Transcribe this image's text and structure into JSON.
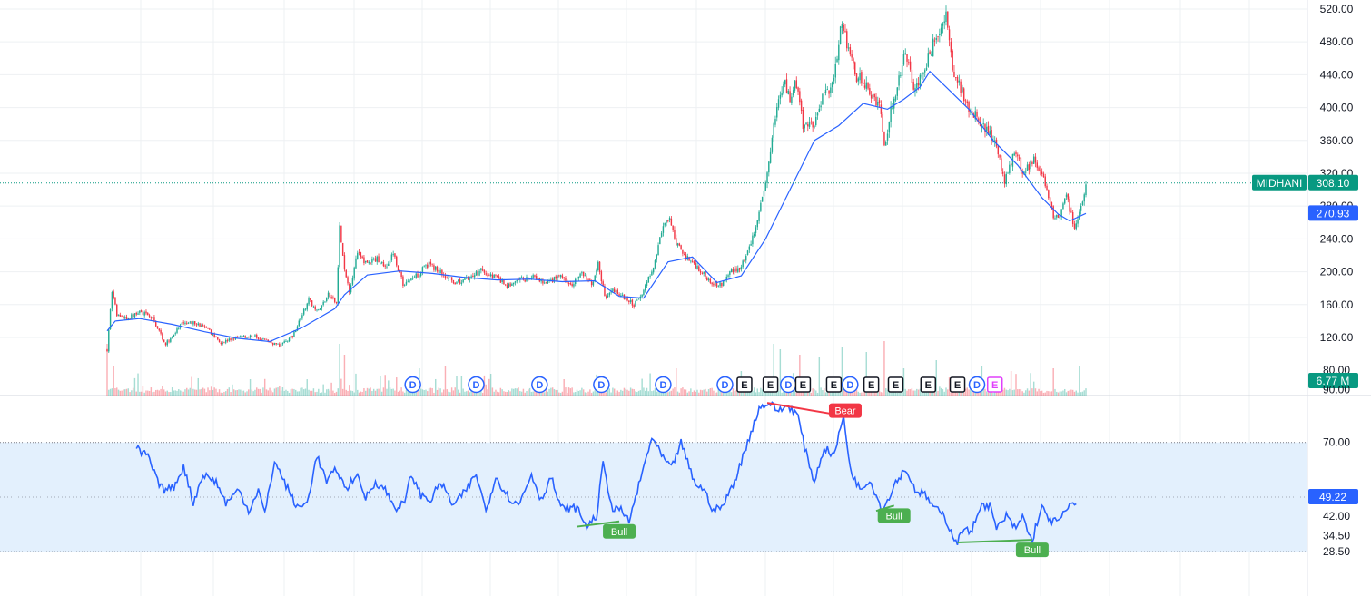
{
  "symbol": "MIDHANI",
  "colors": {
    "up": "#22ab94",
    "down": "#f23645",
    "ma": "#2962ff",
    "rsi": "#2962ff",
    "rsi_band": "#e3f0fd",
    "price_badge": "#089981",
    "ma_badge": "#2962ff",
    "bull": "#4caf50",
    "bear": "#f23645",
    "dividend": "#2962ff",
    "earnings": "#131722",
    "earnings_upcoming": "#e040fb",
    "grid": "#eef0f3",
    "axis_text": "#131722"
  },
  "chart_data": [
    {
      "type": "candlestick",
      "name": "price",
      "symbol": "MIDHANI",
      "last_price": 308.1,
      "ma_last": 270.93,
      "y_ticks": [
        "520.00",
        "480.00",
        "440.00",
        "400.00",
        "360.00",
        "320.00",
        "280.00",
        "240.00",
        "200.00",
        "160.00",
        "120.00",
        "80.00"
      ],
      "ylim": [
        66,
        526
      ],
      "anchors": [
        [
          0,
          105
        ],
        [
          3,
          178
        ],
        [
          6,
          148
        ],
        [
          12,
          142
        ],
        [
          20,
          152
        ],
        [
          28,
          143
        ],
        [
          36,
          112
        ],
        [
          46,
          136
        ],
        [
          54,
          138
        ],
        [
          62,
          129
        ],
        [
          70,
          114
        ],
        [
          80,
          120
        ],
        [
          90,
          122
        ],
        [
          96,
          118
        ],
        [
          106,
          110
        ],
        [
          114,
          122
        ],
        [
          124,
          165
        ],
        [
          130,
          152
        ],
        [
          136,
          172
        ],
        [
          141,
          162
        ],
        [
          143,
          255
        ],
        [
          146,
          200
        ],
        [
          149,
          178
        ],
        [
          154,
          222
        ],
        [
          160,
          210
        ],
        [
          166,
          216
        ],
        [
          172,
          207
        ],
        [
          176,
          223
        ],
        [
          182,
          185
        ],
        [
          190,
          195
        ],
        [
          198,
          210
        ],
        [
          206,
          198
        ],
        [
          214,
          185
        ],
        [
          222,
          192
        ],
        [
          230,
          201
        ],
        [
          238,
          195
        ],
        [
          246,
          182
        ],
        [
          254,
          190
        ],
        [
          262,
          193
        ],
        [
          270,
          185
        ],
        [
          278,
          195
        ],
        [
          286,
          186
        ],
        [
          292,
          198
        ],
        [
          298,
          184
        ],
        [
          302,
          210
        ],
        [
          306,
          170
        ],
        [
          312,
          178
        ],
        [
          318,
          168
        ],
        [
          324,
          160
        ],
        [
          330,
          178
        ],
        [
          336,
          208
        ],
        [
          342,
          255
        ],
        [
          346,
          262
        ],
        [
          350,
          235
        ],
        [
          356,
          218
        ],
        [
          362,
          208
        ],
        [
          368,
          194
        ],
        [
          374,
          185
        ],
        [
          378,
          184
        ],
        [
          384,
          202
        ],
        [
          390,
          205
        ],
        [
          396,
          235
        ],
        [
          400,
          260
        ],
        [
          404,
          300
        ],
        [
          408,
          350
        ],
        [
          412,
          400
        ],
        [
          416,
          432
        ],
        [
          420,
          410
        ],
        [
          424,
          430
        ],
        [
          428,
          380
        ],
        [
          434,
          376
        ],
        [
          440,
          410
        ],
        [
          446,
          430
        ],
        [
          452,
          505
        ],
        [
          456,
          470
        ],
        [
          460,
          440
        ],
        [
          466,
          430
        ],
        [
          472,
          410
        ],
        [
          476,
          395
        ],
        [
          478,
          352
        ],
        [
          482,
          395
        ],
        [
          486,
          420
        ],
        [
          490,
          470
        ],
        [
          496,
          425
        ],
        [
          502,
          440
        ],
        [
          510,
          490
        ],
        [
          516,
          510
        ],
        [
          520,
          445
        ],
        [
          526,
          420
        ],
        [
          530,
          400
        ],
        [
          536,
          385
        ],
        [
          542,
          370
        ],
        [
          548,
          348
        ],
        [
          552,
          308
        ],
        [
          558,
          345
        ],
        [
          564,
          320
        ],
        [
          570,
          335
        ],
        [
          576,
          310
        ],
        [
          582,
          268
        ],
        [
          586,
          265
        ],
        [
          590,
          292
        ],
        [
          595,
          255
        ],
        [
          599,
          280
        ],
        [
          602,
          308
        ]
      ],
      "ma": [
        [
          0,
          128
        ],
        [
          5,
          140
        ],
        [
          20,
          143
        ],
        [
          40,
          136
        ],
        [
          60,
          127
        ],
        [
          80,
          119
        ],
        [
          100,
          115
        ],
        [
          120,
          132
        ],
        [
          140,
          155
        ],
        [
          146,
          172
        ],
        [
          160,
          196
        ],
        [
          180,
          201
        ],
        [
          200,
          198
        ],
        [
          220,
          193
        ],
        [
          240,
          190
        ],
        [
          260,
          191
        ],
        [
          280,
          188
        ],
        [
          300,
          189
        ],
        [
          315,
          170
        ],
        [
          330,
          168
        ],
        [
          345,
          212
        ],
        [
          360,
          218
        ],
        [
          375,
          187
        ],
        [
          390,
          195
        ],
        [
          405,
          240
        ],
        [
          420,
          300
        ],
        [
          435,
          360
        ],
        [
          450,
          378
        ],
        [
          465,
          405
        ],
        [
          480,
          398
        ],
        [
          490,
          410
        ],
        [
          500,
          425
        ],
        [
          506,
          444
        ],
        [
          516,
          425
        ],
        [
          530,
          398
        ],
        [
          545,
          360
        ],
        [
          560,
          330
        ],
        [
          575,
          290
        ],
        [
          585,
          270
        ],
        [
          592,
          262
        ],
        [
          602,
          271
        ]
      ],
      "vol_label": "6.77 M",
      "volume_spikes": [
        [
          0,
          0.95
        ],
        [
          4,
          0.55
        ],
        [
          88,
          0.3
        ],
        [
          143,
          0.95
        ],
        [
          146,
          0.75
        ],
        [
          168,
          0.35
        ],
        [
          192,
          0.5
        ],
        [
          208,
          0.55
        ],
        [
          236,
          0.4
        ],
        [
          281,
          0.3
        ],
        [
          350,
          0.5
        ],
        [
          390,
          0.45
        ],
        [
          410,
          0.95
        ],
        [
          414,
          0.85
        ],
        [
          426,
          0.75
        ],
        [
          438,
          0.7
        ],
        [
          452,
          0.9
        ],
        [
          467,
          0.8
        ],
        [
          478,
          1.0
        ],
        [
          490,
          0.5
        ],
        [
          510,
          0.65
        ],
        [
          538,
          0.55
        ],
        [
          556,
          0.45
        ],
        [
          582,
          0.5
        ],
        [
          598,
          0.55
        ]
      ],
      "events": [
        {
          "label": "D",
          "kind": "dividend",
          "x": 188
        },
        {
          "label": "D",
          "kind": "dividend",
          "x": 227
        },
        {
          "label": "D",
          "kind": "dividend",
          "x": 266
        },
        {
          "label": "D",
          "kind": "dividend",
          "x": 304
        },
        {
          "label": "D",
          "kind": "dividend",
          "x": 342
        },
        {
          "label": "D",
          "kind": "dividend",
          "x": 380
        },
        {
          "label": "E",
          "kind": "earnings",
          "x": 392
        },
        {
          "label": "E",
          "kind": "earnings",
          "x": 408
        },
        {
          "label": "D",
          "kind": "dividend",
          "x": 419
        },
        {
          "label": "E",
          "kind": "earnings",
          "x": 428
        },
        {
          "label": "E",
          "kind": "earnings",
          "x": 447
        },
        {
          "label": "D",
          "kind": "dividend",
          "x": 457
        },
        {
          "label": "E",
          "kind": "earnings",
          "x": 470
        },
        {
          "label": "E",
          "kind": "earnings",
          "x": 485
        },
        {
          "label": "E",
          "kind": "earnings",
          "x": 505
        },
        {
          "label": "E",
          "kind": "earnings",
          "x": 523
        },
        {
          "label": "D",
          "kind": "dividend",
          "x": 535
        },
        {
          "label": "E",
          "kind": "earnings_upcoming",
          "x": 546
        }
      ]
    },
    {
      "type": "line",
      "name": "rsi",
      "last_value": 49.22,
      "y_ticks": [
        "90.00",
        "70.00",
        "42.00",
        "34.50",
        "28.50"
      ],
      "anchors": [
        [
          1,
          68
        ],
        [
          4,
          66
        ],
        [
          8,
          65
        ],
        [
          14,
          55
        ],
        [
          18,
          52
        ],
        [
          24,
          53
        ],
        [
          30,
          61
        ],
        [
          36,
          47
        ],
        [
          42,
          58
        ],
        [
          50,
          55
        ],
        [
          56,
          47
        ],
        [
          64,
          52
        ],
        [
          70,
          44
        ],
        [
          76,
          52
        ],
        [
          80,
          43
        ],
        [
          86,
          63
        ],
        [
          92,
          55
        ],
        [
          100,
          45
        ],
        [
          106,
          47
        ],
        [
          112,
          65
        ],
        [
          118,
          55
        ],
        [
          124,
          60
        ],
        [
          130,
          52
        ],
        [
          136,
          58
        ],
        [
          142,
          49
        ],
        [
          148,
          55
        ],
        [
          154,
          52
        ],
        [
          160,
          45
        ],
        [
          166,
          47
        ],
        [
          170,
          58
        ],
        [
          176,
          50
        ],
        [
          182,
          48
        ],
        [
          188,
          55
        ],
        [
          196,
          46
        ],
        [
          204,
          52
        ],
        [
          210,
          58
        ],
        [
          216,
          44
        ],
        [
          222,
          57
        ],
        [
          230,
          49
        ],
        [
          236,
          46
        ],
        [
          244,
          58
        ],
        [
          250,
          48
        ],
        [
          256,
          57
        ],
        [
          262,
          45
        ],
        [
          272,
          45
        ],
        [
          278,
          38
        ],
        [
          284,
          42
        ],
        [
          288,
          62
        ],
        [
          294,
          44
        ],
        [
          298,
          45
        ],
        [
          304,
          40
        ],
        [
          312,
          58
        ],
        [
          318,
          72
        ],
        [
          324,
          65
        ],
        [
          330,
          60
        ],
        [
          336,
          70
        ],
        [
          344,
          55
        ],
        [
          350,
          52
        ],
        [
          356,
          44
        ],
        [
          362,
          46
        ],
        [
          370,
          57
        ],
        [
          378,
          72
        ],
        [
          384,
          83
        ],
        [
          390,
          85
        ],
        [
          396,
          82
        ],
        [
          402,
          84
        ],
        [
          408,
          80
        ],
        [
          412,
          68
        ],
        [
          418,
          55
        ],
        [
          424,
          68
        ],
        [
          430,
          65
        ],
        [
          436,
          80
        ],
        [
          440,
          60
        ],
        [
          446,
          52
        ],
        [
          452,
          56
        ],
        [
          460,
          44
        ],
        [
          468,
          55
        ],
        [
          474,
          60
        ],
        [
          480,
          52
        ],
        [
          486,
          50
        ],
        [
          492,
          45
        ],
        [
          498,
          42
        ],
        [
          502,
          36
        ],
        [
          506,
          32
        ],
        [
          510,
          38
        ],
        [
          514,
          35
        ],
        [
          520,
          46
        ],
        [
          526,
          46
        ],
        [
          530,
          37
        ],
        [
          536,
          42
        ],
        [
          542,
          37
        ],
        [
          546,
          42
        ],
        [
          552,
          32
        ],
        [
          554,
          38
        ],
        [
          558,
          45
        ],
        [
          564,
          40
        ],
        [
          568,
          40
        ],
        [
          574,
          45
        ],
        [
          579,
          48
        ]
      ],
      "divergences": [
        {
          "label": "Bull",
          "kind": "bull",
          "from": [
            272,
            38
          ],
          "to": [
            298,
            40
          ]
        },
        {
          "label": "Bear",
          "kind": "bear",
          "from": [
            389,
            85
          ],
          "to": [
            437,
            80
          ]
        },
        {
          "label": "Bull",
          "kind": "bull",
          "from": [
            456,
            44
          ],
          "to": [
            467,
            46
          ]
        },
        {
          "label": "Bull",
          "kind": "bull",
          "from": [
            506,
            32
          ],
          "to": [
            552,
            33
          ]
        }
      ]
    }
  ]
}
